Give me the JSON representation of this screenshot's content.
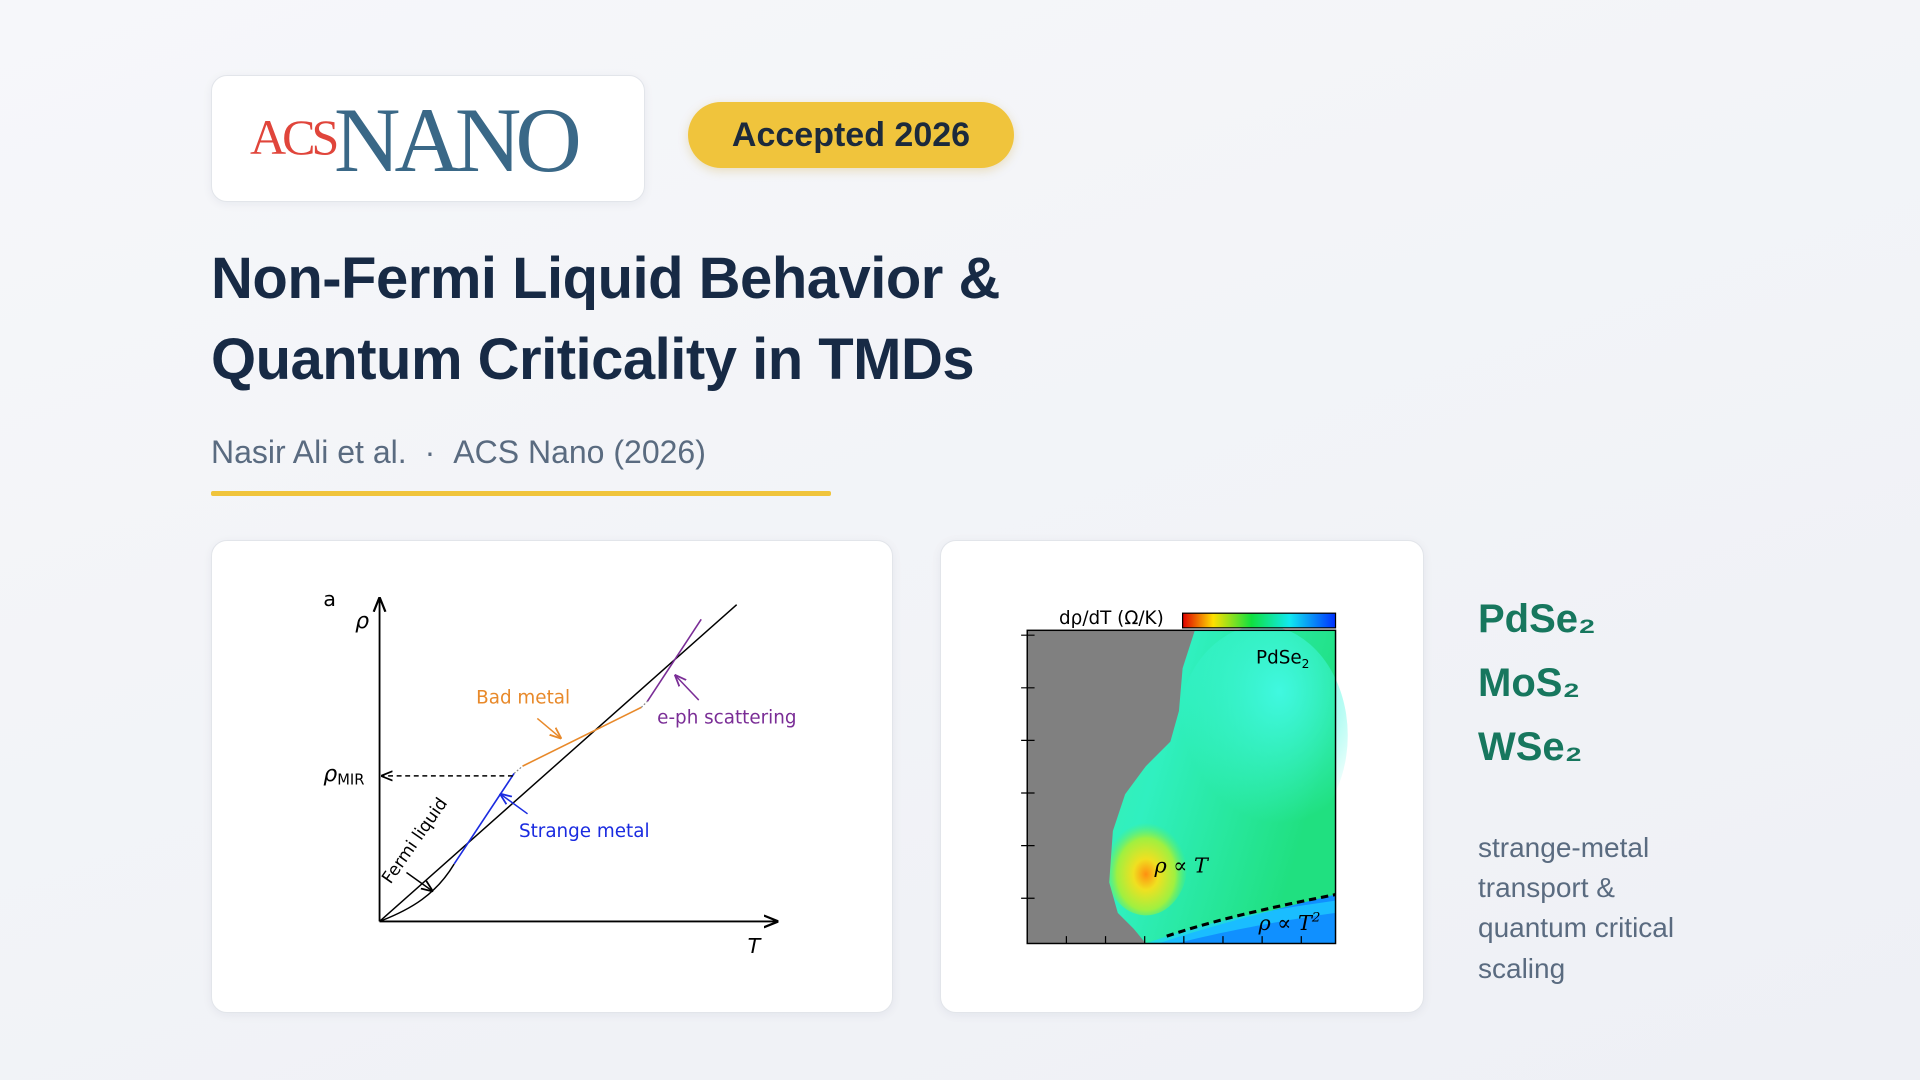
{
  "logo": {
    "part1": "ACS",
    "part2": "NANO"
  },
  "badge": "Accepted 2026",
  "title": [
    "Non-Fermi Liquid Behavior &",
    "Quantum Criticality in TMDs"
  ],
  "byline": {
    "authors": "Nasir Ali et al.",
    "separator": "·",
    "venue": "ACS Nano (2026)"
  },
  "figure_a": {
    "panel_label": "a",
    "y_axis": "ρ",
    "x_axis": "T",
    "rho_mir": {
      "symbol": "ρ",
      "subscript": "MIR"
    },
    "labels": {
      "bad_metal": "Bad metal",
      "eph": "e-ph scattering",
      "strange_metal": "Strange metal",
      "fermi_liquid": "Fermi liquid"
    }
  },
  "figure_b": {
    "colorbar_label": "dρ/dT (Ω/K)",
    "material": {
      "base": "PdSe",
      "subscript": "2"
    },
    "linear_law": "ρ ∝ T",
    "quadratic_law": {
      "base": "ρ ∝ T",
      "superscript": "2"
    }
  },
  "materials": [
    "PdSe₂",
    "MoS₂",
    "WSe₂"
  ],
  "description": [
    "strange-metal",
    "transport &",
    "quantum critical",
    "scaling"
  ]
}
